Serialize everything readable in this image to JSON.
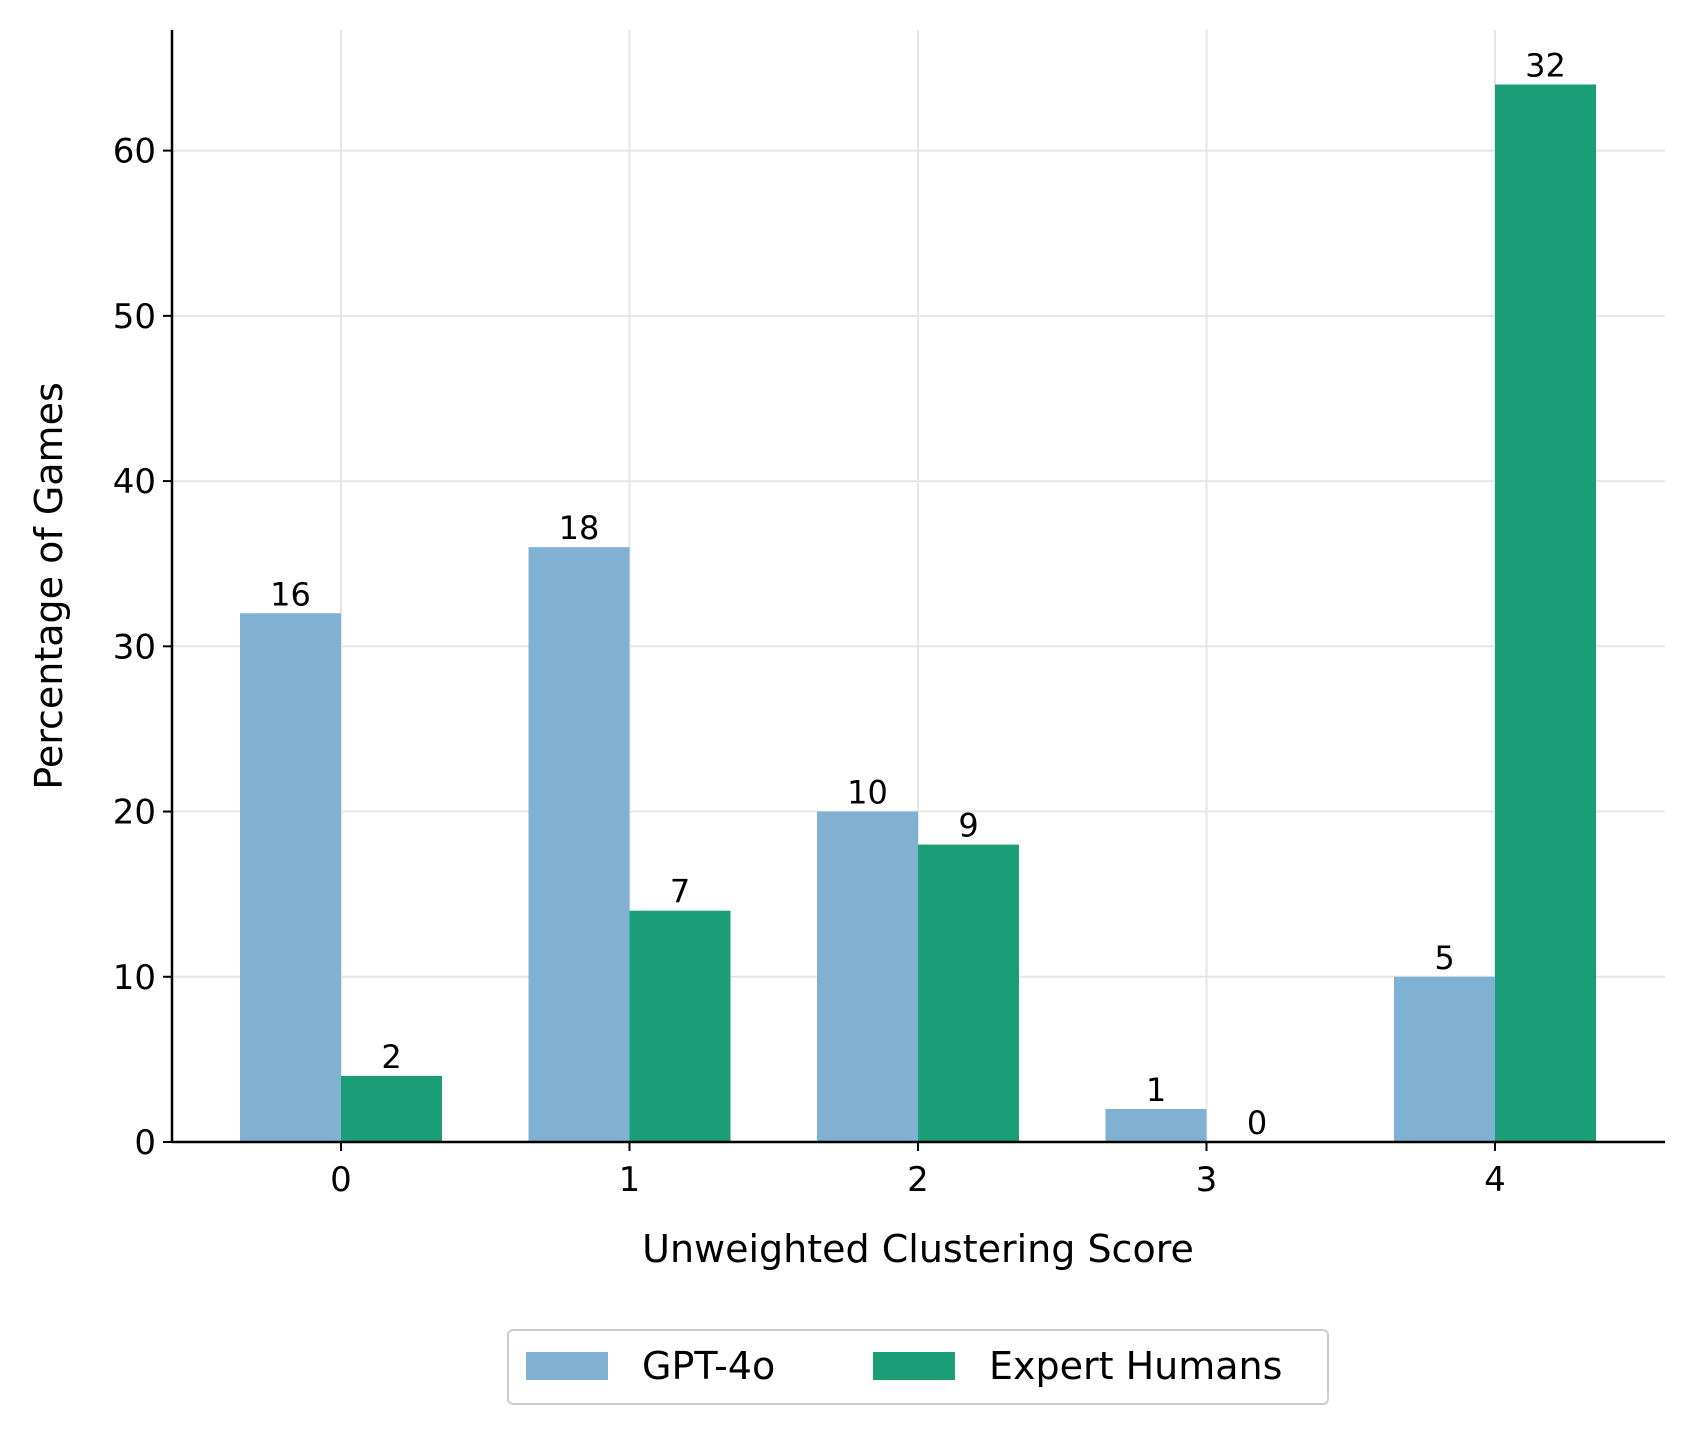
{
  "chart_data": {
    "type": "bar",
    "xlabel": "Unweighted Clustering Score",
    "ylabel": "Percentage of Games",
    "categories": [
      "0",
      "1",
      "2",
      "3",
      "4"
    ],
    "ylim": [
      0,
      67.3
    ],
    "yticks": [
      0,
      10,
      20,
      30,
      40,
      50,
      60
    ],
    "grid": true,
    "legend_position": "bottom-center",
    "series": [
      {
        "name": "GPT-4o",
        "color": "#80b1d3",
        "values": [
          32,
          36,
          20,
          2,
          10
        ],
        "counts": [
          "16",
          "18",
          "10",
          "1",
          "5"
        ]
      },
      {
        "name": "Expert Humans",
        "color": "#1b9e77",
        "values": [
          4,
          14,
          18,
          0,
          64
        ],
        "counts": [
          "2",
          "7",
          "9",
          "0",
          "32"
        ]
      }
    ]
  }
}
